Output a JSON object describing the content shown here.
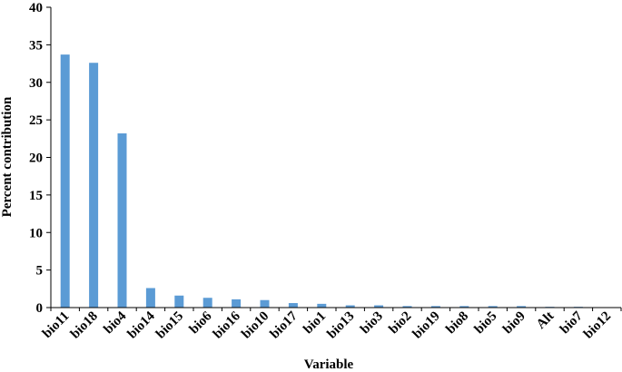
{
  "chart_data": {
    "type": "bar",
    "xlabel": "Variable",
    "ylabel": "Percent contribution",
    "ylim": [
      0,
      40
    ],
    "yticks": [
      0,
      5,
      10,
      15,
      20,
      25,
      30,
      35,
      40
    ],
    "grid": false,
    "bar_color": "#5b9bd5",
    "categories": [
      "bio11",
      "bio18",
      "bio4",
      "bio14",
      "bio15",
      "bio6",
      "bio16",
      "bio10",
      "bio17",
      "bio1",
      "bio13",
      "bio3",
      "bio2",
      "bio19",
      "bio8",
      "bio5",
      "bio9",
      "Alt",
      "bio7",
      "bio12"
    ],
    "values": [
      33.7,
      32.6,
      23.2,
      2.6,
      1.6,
      1.3,
      1.1,
      1.0,
      0.6,
      0.5,
      0.3,
      0.3,
      0.2,
      0.2,
      0.2,
      0.2,
      0.2,
      0.1,
      0.1,
      0.05
    ]
  }
}
